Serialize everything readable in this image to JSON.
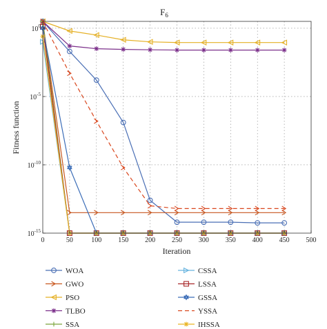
{
  "chart_data": {
    "type": "line",
    "title": "F",
    "title_subscript": "6",
    "xlabel": "Iteration",
    "ylabel": "Fitness function",
    "xlim": [
      0,
      500
    ],
    "ylim_log10": [
      -15,
      0.5
    ],
    "yscale": "log",
    "grid": true,
    "legend_position": "bottom",
    "x_ticks": [
      0,
      50,
      100,
      150,
      200,
      250,
      300,
      350,
      400,
      450,
      500
    ],
    "x_tick_labels": [
      "0",
      "50",
      "100",
      "150",
      "200",
      "250",
      "300",
      "350",
      "400",
      "450",
      "500"
    ],
    "y_ticks_log10": [
      0,
      -5,
      -10,
      -15
    ],
    "y_tick_labels": [
      {
        "base": "10",
        "exp": "0"
      },
      {
        "base": "10",
        "exp": "-5"
      },
      {
        "base": "10",
        "exp": "-10"
      },
      {
        "base": "10",
        "exp": "-15"
      }
    ],
    "x": [
      0,
      50,
      100,
      150,
      200,
      250,
      300,
      350,
      400,
      450
    ],
    "series": [
      {
        "name": "WOA",
        "color": "#4a6fb5",
        "dash": "solid",
        "marker": "circle",
        "log10_values": [
          0.5,
          -1.7,
          -3.8,
          -6.9,
          -12.6,
          -14.2,
          -14.2,
          -14.2,
          -14.25,
          -14.25
        ]
      },
      {
        "name": "GWO",
        "color": "#c8561e",
        "dash": "solid",
        "marker": "chevron",
        "log10_values": [
          0.5,
          -13.5,
          -13.5,
          -13.5,
          -13.5,
          -13.5,
          -13.5,
          -13.5,
          -13.5,
          -13.5
        ]
      },
      {
        "name": "PSO",
        "color": "#e5b025",
        "dash": "solid",
        "marker": "triangle-left",
        "log10_values": [
          0.5,
          -0.2,
          -0.5,
          -0.85,
          -1.0,
          -1.05,
          -1.05,
          -1.05,
          -1.05,
          -1.05
        ]
      },
      {
        "name": "TLBO",
        "color": "#7b2f8a",
        "dash": "solid",
        "marker": "star",
        "log10_values": [
          0.5,
          -1.3,
          -1.5,
          -1.55,
          -1.58,
          -1.6,
          -1.6,
          -1.6,
          -1.6,
          -1.6
        ]
      },
      {
        "name": "SSA",
        "color": "#7aa53a",
        "dash": "solid",
        "marker": "plus",
        "log10_values": [
          0.5,
          -15,
          -15,
          -15,
          -15,
          -15,
          -15,
          -15,
          -15,
          -15
        ]
      },
      {
        "name": "CSSA",
        "color": "#67b4df",
        "dash": "solid",
        "marker": "triangle-right",
        "log10_values": [
          -1.0,
          -15,
          -15,
          -15,
          -15,
          -15,
          -15,
          -15,
          -15,
          -15
        ]
      },
      {
        "name": "LSSA",
        "color": "#a8282a",
        "dash": "solid",
        "marker": "square",
        "log10_values": [
          0.1,
          -15,
          -15,
          -15,
          -15,
          -15,
          -15,
          -15,
          -15,
          -15
        ]
      },
      {
        "name": "GSSA",
        "color": "#3a6cb7",
        "dash": "solid",
        "marker": "hexagram",
        "log10_values": [
          0.0,
          -10.2,
          -15,
          -15,
          -15,
          -15,
          -15,
          -15,
          -15,
          -15
        ]
      },
      {
        "name": "YSSA",
        "color": "#d9461d",
        "dash": "dashed",
        "marker": "chevron",
        "log10_values": [
          0.5,
          -3.3,
          -6.8,
          -10.2,
          -13.0,
          -13.2,
          -13.2,
          -13.2,
          -13.2,
          -13.2
        ]
      },
      {
        "name": "IHSSA",
        "color": "#e9b422",
        "dash": "solid",
        "marker": "star",
        "log10_values": [
          -0.6,
          -15,
          -15,
          -15,
          -15,
          -15,
          -15,
          -15,
          -15,
          -15
        ]
      }
    ]
  }
}
